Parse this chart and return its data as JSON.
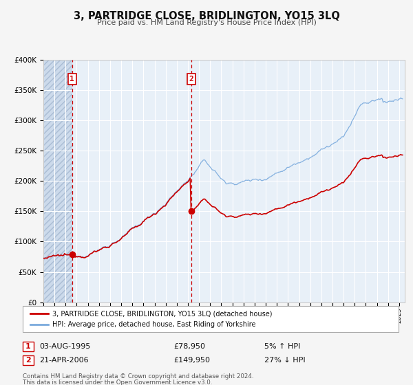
{
  "title": "3, PARTRIDGE CLOSE, BRIDLINGTON, YO15 3LQ",
  "subtitle": "Price paid vs. HM Land Registry's House Price Index (HPI)",
  "legend_line1": "3, PARTRIDGE CLOSE, BRIDLINGTON, YO15 3LQ (detached house)",
  "legend_line2": "HPI: Average price, detached house, East Riding of Yorkshire",
  "annotation1_label": "1",
  "annotation1_date": "03-AUG-1995",
  "annotation1_price": 78950,
  "annotation1_hpi": "5% ↑ HPI",
  "annotation1_year": 1995.58,
  "annotation2_label": "2",
  "annotation2_date": "21-APR-2006",
  "annotation2_price": 149950,
  "annotation2_hpi": "27% ↓ HPI",
  "annotation2_year": 2006.3,
  "red_line_color": "#cc0000",
  "blue_line_color": "#7aaadd",
  "hatch_fill_color": "#ccdaeb",
  "hatch_edge_color": "#aabdd4",
  "grid_color": "#ffffff",
  "plot_bg_color": "#e8f0f8",
  "fig_bg_color": "#f5f5f5",
  "ylim": [
    0,
    400000
  ],
  "yticks": [
    0,
    50000,
    100000,
    150000,
    200000,
    250000,
    300000,
    350000,
    400000
  ],
  "xlim_start": 1993.0,
  "xlim_end": 2025.5,
  "footer_line1": "Contains HM Land Registry data © Crown copyright and database right 2024.",
  "footer_line2": "This data is licensed under the Open Government Licence v3.0."
}
